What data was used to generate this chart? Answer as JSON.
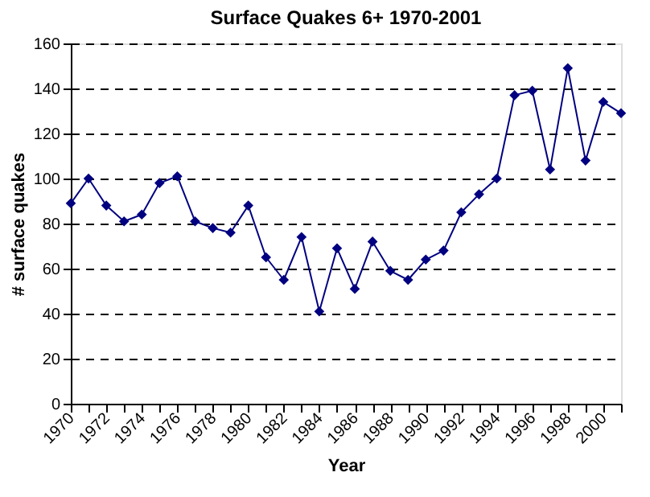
{
  "chart_data": {
    "type": "line",
    "title": "Surface Quakes 6+ 1970-2001",
    "xlabel": "Year",
    "ylabel": "# surface quakes",
    "x": [
      1970,
      1971,
      1972,
      1973,
      1974,
      1975,
      1976,
      1977,
      1978,
      1979,
      1980,
      1981,
      1982,
      1983,
      1984,
      1985,
      1986,
      1987,
      1988,
      1989,
      1990,
      1991,
      1992,
      1993,
      1994,
      1995,
      1996,
      1997,
      1998,
      1999,
      2000,
      2001
    ],
    "series": [
      {
        "color": "#000080",
        "values": [
          89,
          100,
          88,
          81,
          84,
          98,
          101,
          81,
          78,
          76,
          88,
          65,
          55,
          74,
          41,
          69,
          51,
          72,
          59,
          55,
          64,
          68,
          85,
          93,
          100,
          137,
          139,
          104,
          149,
          108,
          134,
          129
        ]
      }
    ],
    "xlim": [
      1970,
      2001
    ],
    "xticks": [
      1970,
      {
        "value": 1971,
        "label": null
      },
      1972,
      {
        "value": 1973,
        "label": null
      },
      1974,
      {
        "value": 1975,
        "label": null
      },
      1976,
      {
        "value": 1977,
        "label": null
      },
      1978,
      {
        "value": 1979,
        "label": null
      },
      1980,
      {
        "value": 1981,
        "label": null
      },
      1982,
      {
        "value": 1983,
        "label": null
      },
      1984,
      {
        "value": 1985,
        "label": null
      },
      1986,
      {
        "value": 1987,
        "label": null
      },
      1988,
      {
        "value": 1989,
        "label": null
      },
      1990,
      {
        "value": 1991,
        "label": null
      },
      1992,
      {
        "value": 1993,
        "label": null
      },
      1994,
      {
        "value": 1995,
        "label": null
      },
      1996,
      {
        "value": 1997,
        "label": null
      },
      1998,
      {
        "value": 1999,
        "label": null
      },
      2000,
      {
        "value": 2001,
        "label": null
      }
    ],
    "ylim": [
      0,
      160
    ],
    "yticks": [
      0,
      20,
      40,
      60,
      80,
      100,
      120,
      140,
      160
    ],
    "grid": "y",
    "marker": "diamond",
    "line_style": "solid"
  }
}
